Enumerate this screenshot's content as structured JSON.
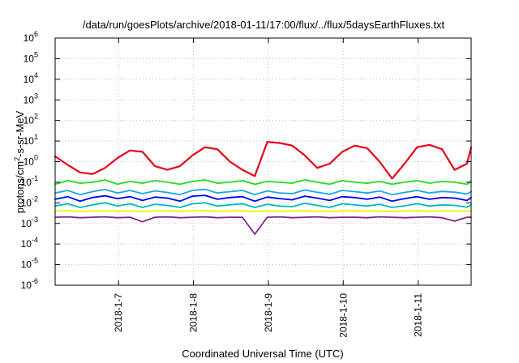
{
  "chart_data": {
    "type": "line",
    "title": "/data/run/goesPlots/archive/2018-01-11/17:00/flux/../flux/5daysEarthFluxes.txt",
    "xlabel": "Coordinated Universal Time (UTC)",
    "ylabel": "protons/cm²-s-sr-MeV",
    "ylabel_parts": {
      "pre": "protons/cm",
      "sup": "2",
      "post": "-s-sr-MeV"
    },
    "y_scale": "log",
    "ylim": [
      1e-06,
      1000000.0
    ],
    "y_ticks": [
      {
        "base": "10",
        "exp": "6"
      },
      {
        "base": "10",
        "exp": "5"
      },
      {
        "base": "10",
        "exp": "4"
      },
      {
        "base": "10",
        "exp": "3"
      },
      {
        "base": "10",
        "exp": "2"
      },
      {
        "base": "10",
        "exp": "1"
      },
      {
        "base": "10",
        "exp": "0"
      },
      {
        "base": "10",
        "exp": "-1"
      },
      {
        "base": "10",
        "exp": "-2"
      },
      {
        "base": "10",
        "exp": "-3"
      },
      {
        "base": "10",
        "exp": "-4"
      },
      {
        "base": "10",
        "exp": "-5"
      },
      {
        "base": "10",
        "exp": "-6"
      }
    ],
    "xlim": [
      "2018-01-06 03:40",
      "2018-01-11 17:00"
    ],
    "x_ticks": [
      "2018-1-7",
      "2018-1-8",
      "2018-1-9",
      "2018-1-10",
      "2018-1-11"
    ],
    "x_tick_dates": [
      "2018-01-07 00:00",
      "2018-01-08 00:00",
      "2018-01-09 00:00",
      "2018-01-10 00:00",
      "2018-01-11 00:00"
    ],
    "grid": true,
    "legend": "none",
    "x": [
      "2018-01-06 03:40",
      "2018-01-06 07:40",
      "2018-01-06 11:40",
      "2018-01-06 15:40",
      "2018-01-06 19:40",
      "2018-01-06 23:40",
      "2018-01-07 03:40",
      "2018-01-07 07:40",
      "2018-01-07 11:40",
      "2018-01-07 15:40",
      "2018-01-07 19:40",
      "2018-01-07 23:40",
      "2018-01-08 03:40",
      "2018-01-08 07:40",
      "2018-01-08 11:40",
      "2018-01-08 15:40",
      "2018-01-08 19:40",
      "2018-01-08 23:40",
      "2018-01-09 03:40",
      "2018-01-09 07:40",
      "2018-01-09 11:40",
      "2018-01-09 15:40",
      "2018-01-09 19:40",
      "2018-01-09 23:40",
      "2018-01-10 03:40",
      "2018-01-10 07:40",
      "2018-01-10 11:40",
      "2018-01-10 15:40",
      "2018-01-10 19:40",
      "2018-01-10 23:40",
      "2018-01-11 03:40",
      "2018-01-11 07:40",
      "2018-01-11 11:40",
      "2018-01-11 15:40",
      "2018-01-11 17:00"
    ],
    "series": [
      {
        "color": "#e8001a",
        "values": [
          1.8,
          0.7,
          0.3,
          0.25,
          0.5,
          1.5,
          3.5,
          3.0,
          0.6,
          0.4,
          0.6,
          2.0,
          5.0,
          4.0,
          1.0,
          0.4,
          0.2,
          9.0,
          8.0,
          6.0,
          2.0,
          0.5,
          0.8,
          3.0,
          6.0,
          4.5,
          1.0,
          0.15,
          0.8,
          5.0,
          6.5,
          4.0,
          0.4,
          0.8,
          5.0
        ]
      },
      {
        "color": "#22dd22",
        "values": [
          0.08,
          0.12,
          0.09,
          0.1,
          0.13,
          0.08,
          0.11,
          0.09,
          0.12,
          0.1,
          0.08,
          0.11,
          0.13,
          0.09,
          0.1,
          0.12,
          0.08,
          0.11,
          0.1,
          0.09,
          0.13,
          0.1,
          0.08,
          0.12,
          0.1,
          0.09,
          0.11,
          0.08,
          0.1,
          0.12,
          0.09,
          0.11,
          0.1,
          0.08,
          0.11
        ]
      },
      {
        "color": "#1aa5e8",
        "values": [
          0.03,
          0.04,
          0.025,
          0.035,
          0.045,
          0.03,
          0.04,
          0.028,
          0.038,
          0.032,
          0.025,
          0.04,
          0.045,
          0.03,
          0.035,
          0.04,
          0.025,
          0.038,
          0.03,
          0.028,
          0.042,
          0.033,
          0.026,
          0.04,
          0.035,
          0.03,
          0.038,
          0.025,
          0.032,
          0.04,
          0.03,
          0.036,
          0.033,
          0.027,
          0.035
        ]
      },
      {
        "color": "#0000ee",
        "values": [
          0.015,
          0.02,
          0.012,
          0.018,
          0.022,
          0.016,
          0.02,
          0.013,
          0.019,
          0.017,
          0.012,
          0.021,
          0.023,
          0.015,
          0.018,
          0.02,
          0.012,
          0.019,
          0.016,
          0.014,
          0.021,
          0.017,
          0.013,
          0.02,
          0.018,
          0.015,
          0.019,
          0.012,
          0.016,
          0.02,
          0.015,
          0.018,
          0.017,
          0.013,
          0.018
        ]
      },
      {
        "color": "#00bbbb",
        "values": [
          0.007,
          0.009,
          0.006,
          0.008,
          0.01,
          0.007,
          0.009,
          0.006,
          0.0085,
          0.0075,
          0.006,
          0.009,
          0.01,
          0.007,
          0.008,
          0.009,
          0.006,
          0.0085,
          0.007,
          0.0065,
          0.0095,
          0.0075,
          0.006,
          0.009,
          0.008,
          0.007,
          0.0085,
          0.006,
          0.0072,
          0.009,
          0.007,
          0.008,
          0.0075,
          0.0062,
          0.008
        ]
      },
      {
        "color": "#f2f200",
        "values": [
          0.004,
          0.0042,
          0.0038,
          0.004,
          0.0041,
          0.0039,
          0.004,
          0.0038,
          0.0041,
          0.004,
          0.0039,
          0.004,
          0.0042,
          0.0039,
          0.004,
          0.0041,
          0.0038,
          0.004,
          0.0039,
          0.004,
          0.0041,
          0.0039,
          0.0038,
          0.004,
          0.0041,
          0.004,
          0.0039,
          0.0038,
          0.004,
          0.0041,
          0.0039,
          0.004,
          0.004,
          0.0039,
          0.004
        ]
      },
      {
        "color": "#882288",
        "values": [
          0.002,
          0.0021,
          0.0019,
          0.002,
          0.0021,
          0.0019,
          0.002,
          0.0012,
          0.002,
          0.0021,
          0.0019,
          0.002,
          0.0021,
          0.0019,
          0.002,
          0.002,
          0.0003,
          0.002,
          0.0021,
          0.0019,
          0.002,
          0.0021,
          0.0019,
          0.002,
          0.002,
          0.0019,
          0.0021,
          0.002,
          0.0019,
          0.002,
          0.0021,
          0.0019,
          0.0013,
          0.002,
          0.002
        ]
      }
    ]
  }
}
